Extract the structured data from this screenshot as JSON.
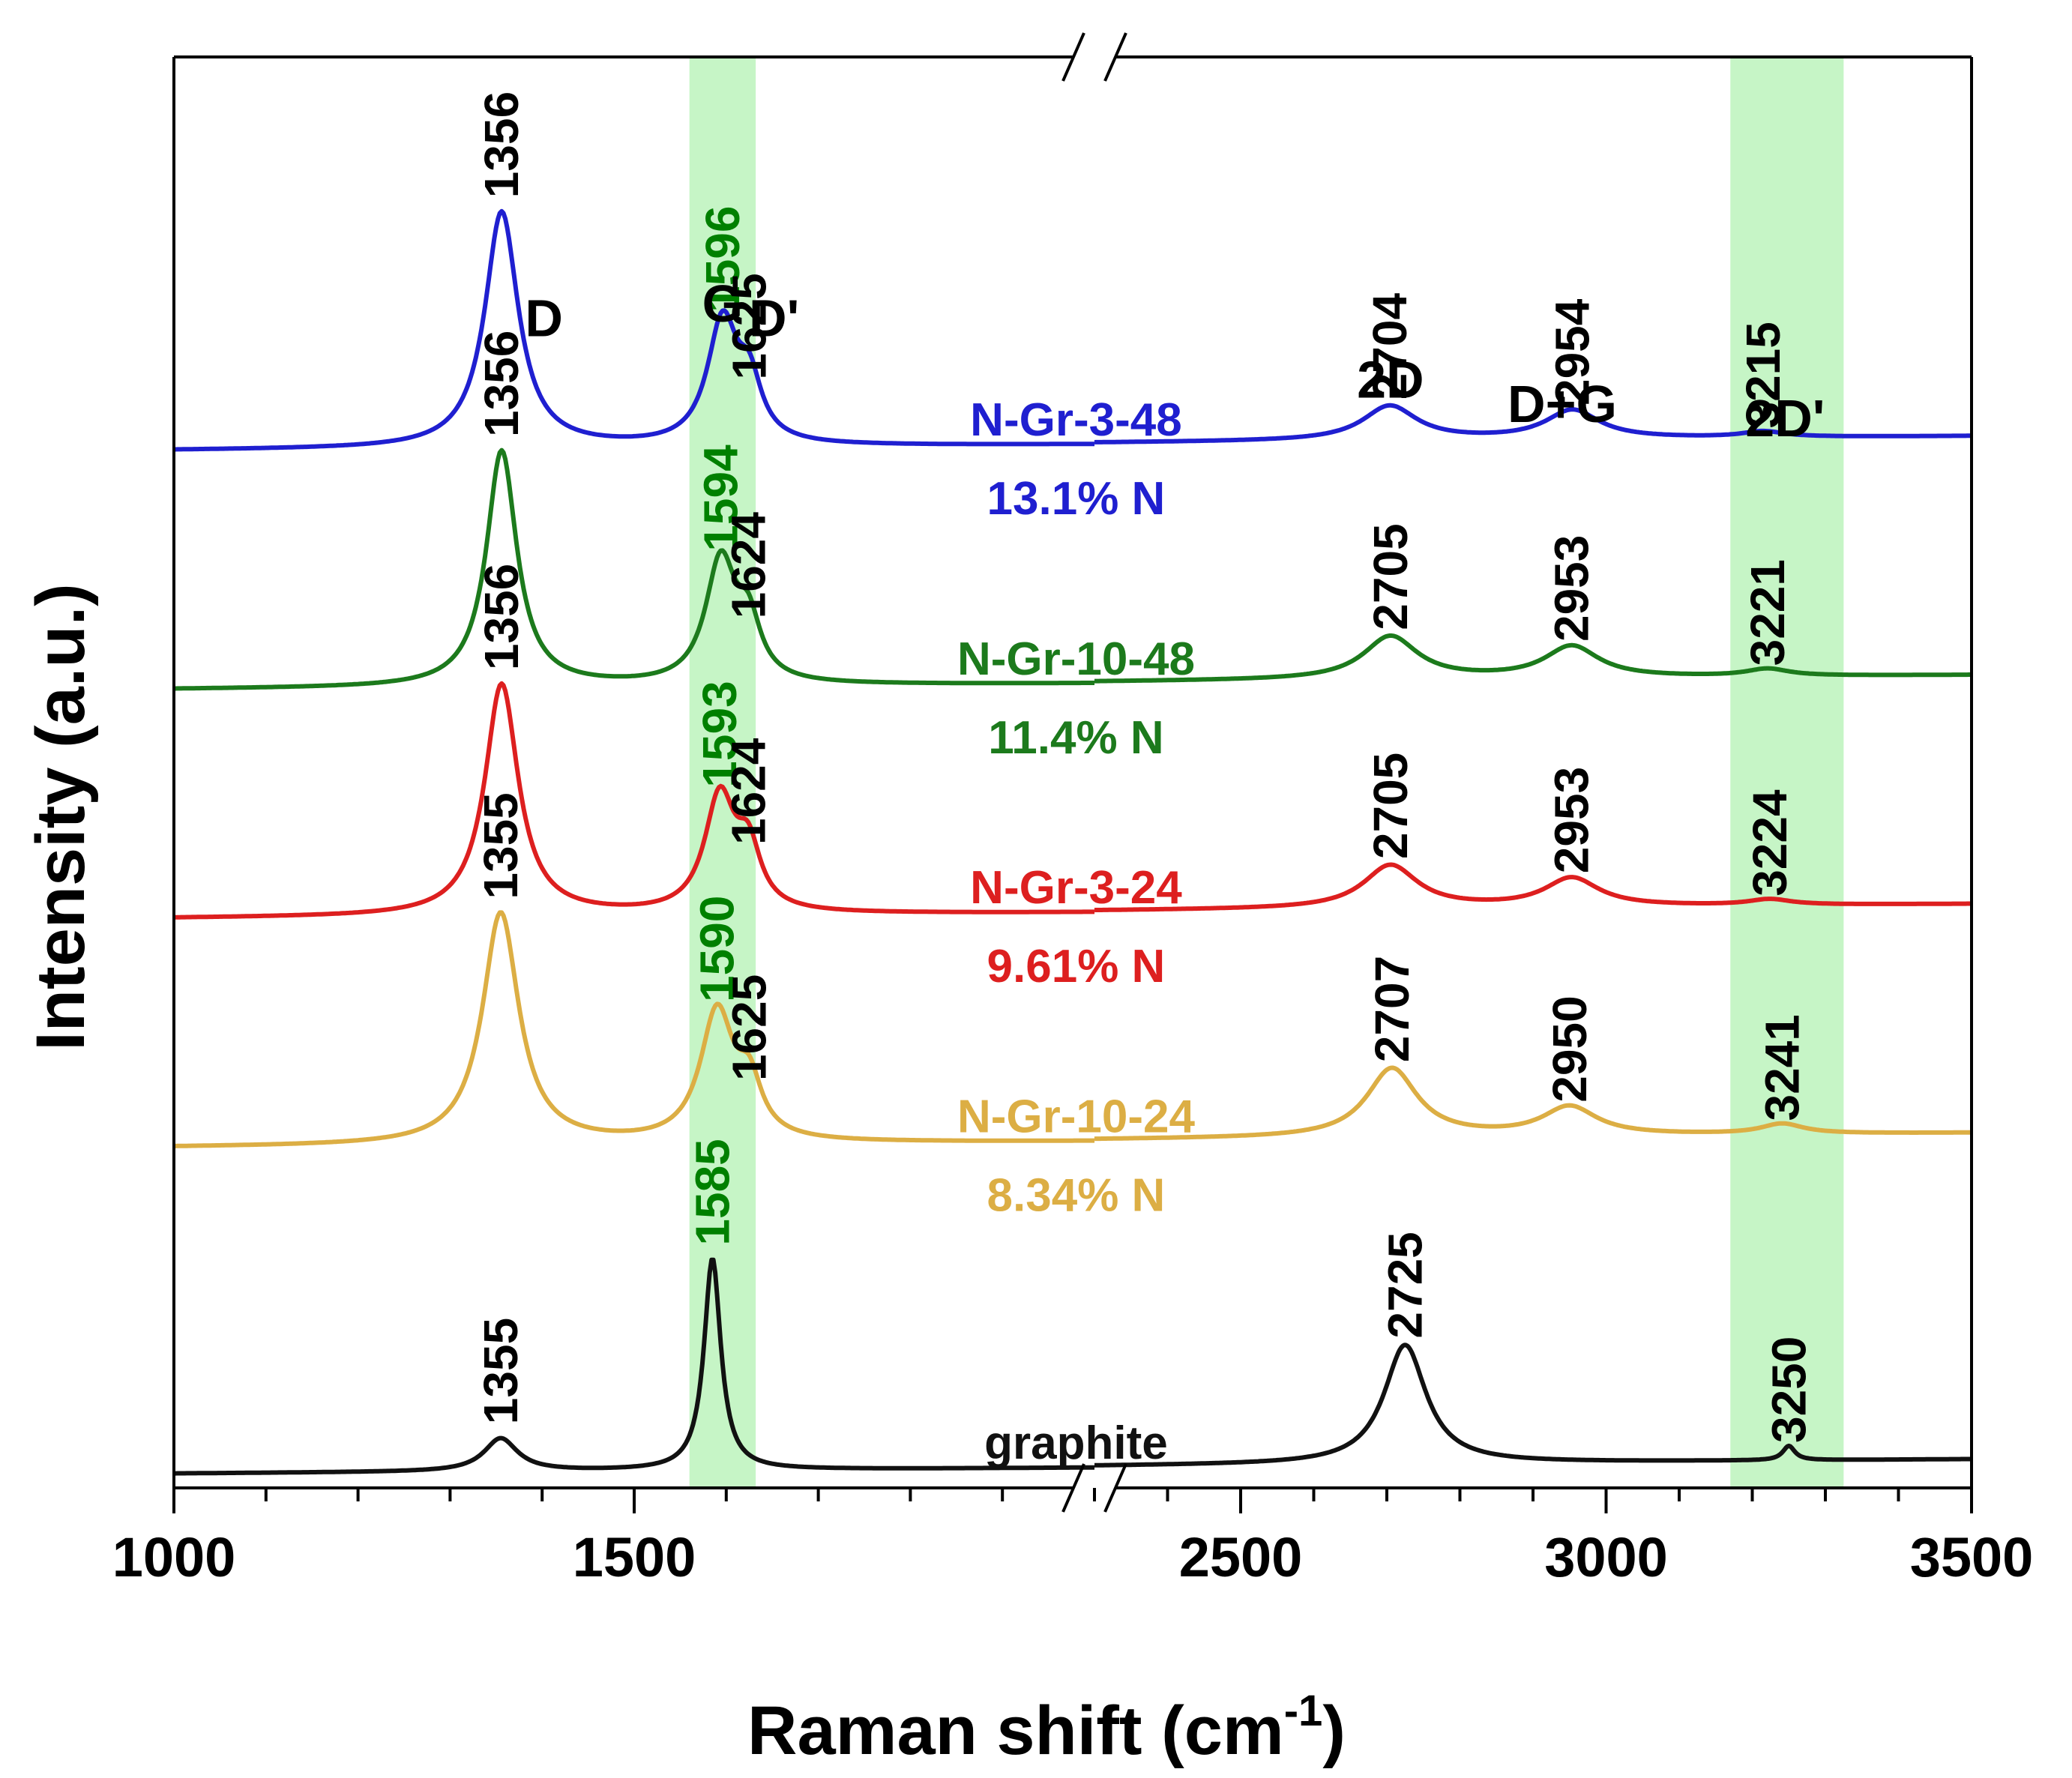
{
  "chart_data": {
    "type": "line",
    "title": "",
    "xlabel": "Raman shift (cm",
    "xlabel_sup": "-1",
    "xlabel_end": ")",
    "ylabel": "Intensity (a.u.)",
    "x_segments": [
      [
        1000,
        2000
      ],
      [
        2300,
        3500
      ]
    ],
    "xticks": [
      1000,
      1500,
      2500,
      3000,
      3500
    ],
    "highlight_bands": [
      {
        "name": "G band",
        "x": [
          1560,
          1632
        ],
        "color": "#c6f5c6"
      },
      {
        "name": "2D' band",
        "x": [
          3170,
          3325
        ],
        "color": "#c6f5c6"
      }
    ],
    "peak_labels": [
      {
        "text": "D",
        "x": 1402,
        "level": 0.805
      },
      {
        "text": "G",
        "x": 1596,
        "level": 0.815
      },
      {
        "text": "D'",
        "x": 1652,
        "level": 0.805
      },
      {
        "text": "2D",
        "x": 2705,
        "level": 0.762
      },
      {
        "text": "D+G",
        "x": 2940,
        "level": 0.745
      },
      {
        "text": "2D'",
        "x": 3245,
        "level": 0.735
      }
    ],
    "series": [
      {
        "name": "N-Gr-3-48",
        "percent": "13.1% N",
        "color": "#1f1fd0",
        "value_color": "#008000",
        "baseline": 0.725,
        "label_x": 1980,
        "label_dy": 0,
        "peaks": [
          {
            "label": "1356",
            "x": 1356,
            "h": 0.165,
            "w": 22,
            "value_color": "#000000"
          },
          {
            "label": "1596",
            "x": 1596,
            "h": 0.085,
            "w": 20
          },
          {
            "label": "1625",
            "x": 1625,
            "h": 0.038,
            "w": 16,
            "value_color": "#000000"
          },
          {
            "label": "2704",
            "x": 2704,
            "h": 0.024,
            "w": 45,
            "value_color": "#000000"
          },
          {
            "label": "2954",
            "x": 2954,
            "h": 0.02,
            "w": 45,
            "value_color": "#000000"
          },
          {
            "label": "3215",
            "x": 3215,
            "h": 0.004,
            "w": 35,
            "value_color": "#000000"
          }
        ]
      },
      {
        "name": "N-Gr-10-48",
        "percent": "11.4% N",
        "color": "#1c7a1c",
        "value_color": "#008000",
        "baseline": 0.558,
        "label_x": 1980,
        "label_dy": 0,
        "peaks": [
          {
            "label": "1356",
            "x": 1356,
            "h": 0.165,
            "w": 20,
            "value_color": "#000000"
          },
          {
            "label": "1594",
            "x": 1594,
            "h": 0.085,
            "w": 20
          },
          {
            "label": "1624",
            "x": 1624,
            "h": 0.038,
            "w": 16,
            "value_color": "#000000"
          },
          {
            "label": "2705",
            "x": 2705,
            "h": 0.03,
            "w": 45,
            "value_color": "#000000"
          },
          {
            "label": "2953",
            "x": 2953,
            "h": 0.022,
            "w": 45,
            "value_color": "#000000"
          },
          {
            "label": "3221",
            "x": 3221,
            "h": 0.005,
            "w": 35,
            "value_color": "#000000"
          }
        ]
      },
      {
        "name": "N-Gr-3-24",
        "percent": "9.61% N",
        "color": "#dd1f1f",
        "value_color": "#008000",
        "baseline": 0.398,
        "label_x": 1980,
        "label_dy": 0,
        "peaks": [
          {
            "label": "1356",
            "x": 1356,
            "h": 0.162,
            "w": 22,
            "value_color": "#000000"
          },
          {
            "label": "1593",
            "x": 1593,
            "h": 0.08,
            "w": 20
          },
          {
            "label": "1624",
            "x": 1624,
            "h": 0.04,
            "w": 16,
            "value_color": "#000000"
          },
          {
            "label": "2705",
            "x": 2705,
            "h": 0.03,
            "w": 45,
            "value_color": "#000000"
          },
          {
            "label": "2953",
            "x": 2953,
            "h": 0.02,
            "w": 45,
            "value_color": "#000000"
          },
          {
            "label": "3224",
            "x": 3224,
            "h": 0.004,
            "w": 35,
            "value_color": "#000000"
          }
        ]
      },
      {
        "name": "N-Gr-10-24",
        "percent": "8.34% N",
        "color": "#dcae44",
        "value_color": "#008000",
        "baseline": 0.238,
        "label_x": 1980,
        "label_dy": 0,
        "peaks": [
          {
            "label": "1355",
            "x": 1355,
            "h": 0.162,
            "w": 24,
            "value_color": "#000000"
          },
          {
            "label": "1590",
            "x": 1590,
            "h": 0.09,
            "w": 22
          },
          {
            "label": "1625",
            "x": 1625,
            "h": 0.035,
            "w": 16,
            "value_color": "#000000"
          },
          {
            "label": "2707",
            "x": 2707,
            "h": 0.048,
            "w": 42,
            "value_color": "#000000"
          },
          {
            "label": "2950",
            "x": 2950,
            "h": 0.02,
            "w": 45,
            "value_color": "#000000"
          },
          {
            "label": "3241",
            "x": 3241,
            "h": 0.007,
            "w": 35,
            "value_color": "#000000"
          }
        ]
      },
      {
        "name": "graphite",
        "percent": "",
        "color": "#111111",
        "value_color": "#008000",
        "baseline": 0.01,
        "label_x": 1980,
        "label_dy": 0,
        "peaks": [
          {
            "label": "1355",
            "x": 1355,
            "h": 0.023,
            "w": 22,
            "value_color": "#000000"
          },
          {
            "label": "1585",
            "x": 1585,
            "h": 0.148,
            "w": 11
          },
          {
            "label": "2725",
            "x": 2725,
            "h": 0.083,
            "w": 35,
            "value_color": "#000000"
          },
          {
            "label": "3250",
            "x": 3250,
            "h": 0.01,
            "w": 10,
            "value_color": "#000000"
          }
        ]
      }
    ]
  }
}
